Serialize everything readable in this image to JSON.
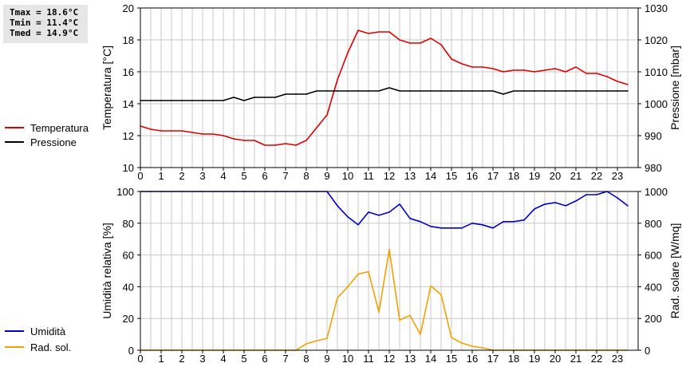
{
  "stats": {
    "tmax": "Tmax = 18.6°C",
    "tmin": "Tmin = 11.4°C",
    "tmed": "Tmed = 14.9°C"
  },
  "colors": {
    "temperature": "#dd0000",
    "pressure": "#000000",
    "humidity": "#0000cc",
    "solar": "#f5a000",
    "grid": "#c8c8c8"
  },
  "chart_data": [
    {
      "type": "line",
      "x_ticks": [
        0,
        1,
        2,
        3,
        4,
        5,
        6,
        7,
        8,
        9,
        10,
        11,
        12,
        13,
        14,
        15,
        16,
        17,
        18,
        19,
        20,
        21,
        22,
        23
      ],
      "xlim": [
        0,
        24
      ],
      "y_left": {
        "label": "Temperatura [°C]",
        "lim": [
          10,
          20
        ],
        "ticks": [
          10,
          12,
          14,
          16,
          18,
          20
        ]
      },
      "y_right": {
        "label": "Pressione [mbar]",
        "lim": [
          980,
          1030
        ],
        "ticks": [
          980,
          990,
          1000,
          1010,
          1020,
          1030
        ]
      },
      "grid": true,
      "legend_position": "left",
      "series": [
        {
          "name": "Temperatura",
          "axis": "left",
          "color": "#dd0000",
          "points": [
            [
              0,
              12.6
            ],
            [
              0.5,
              12.4
            ],
            [
              1,
              12.3
            ],
            [
              1.5,
              12.3
            ],
            [
              2,
              12.3
            ],
            [
              2.5,
              12.2
            ],
            [
              3,
              12.1
            ],
            [
              3.5,
              12.1
            ],
            [
              4,
              12.0
            ],
            [
              4.5,
              11.8
            ],
            [
              5,
              11.7
            ],
            [
              5.5,
              11.7
            ],
            [
              6,
              11.4
            ],
            [
              6.5,
              11.4
            ],
            [
              7,
              11.5
            ],
            [
              7.5,
              11.4
            ],
            [
              8,
              11.7
            ],
            [
              8.5,
              12.5
            ],
            [
              9,
              13.3
            ],
            [
              9.5,
              15.5
            ],
            [
              10,
              17.2
            ],
            [
              10.5,
              18.6
            ],
            [
              11,
              18.4
            ],
            [
              11.5,
              18.5
            ],
            [
              12,
              18.5
            ],
            [
              12.5,
              18.0
            ],
            [
              13,
              17.8
            ],
            [
              13.5,
              17.8
            ],
            [
              14,
              18.1
            ],
            [
              14.5,
              17.7
            ],
            [
              15,
              16.8
            ],
            [
              15.5,
              16.5
            ],
            [
              16,
              16.3
            ],
            [
              16.5,
              16.3
            ],
            [
              17,
              16.2
            ],
            [
              17.5,
              16.0
            ],
            [
              18,
              16.1
            ],
            [
              18.5,
              16.1
            ],
            [
              19,
              16.0
            ],
            [
              19.5,
              16.1
            ],
            [
              20,
              16.2
            ],
            [
              20.5,
              16.0
            ],
            [
              21,
              16.3
            ],
            [
              21.5,
              15.9
            ],
            [
              22,
              15.9
            ],
            [
              22.5,
              15.7
            ],
            [
              23,
              15.4
            ],
            [
              23.5,
              15.2
            ]
          ]
        },
        {
          "name": "Pressione",
          "axis": "right",
          "color": "#000000",
          "points": [
            [
              0,
              1001
            ],
            [
              0.5,
              1001
            ],
            [
              1,
              1001
            ],
            [
              1.5,
              1001
            ],
            [
              2,
              1001
            ],
            [
              2.5,
              1001
            ],
            [
              3,
              1001
            ],
            [
              3.5,
              1001
            ],
            [
              4,
              1001
            ],
            [
              4.5,
              1002
            ],
            [
              5,
              1001
            ],
            [
              5.5,
              1002
            ],
            [
              6,
              1002
            ],
            [
              6.5,
              1002
            ],
            [
              7,
              1003
            ],
            [
              7.5,
              1003
            ],
            [
              8,
              1003
            ],
            [
              8.5,
              1004
            ],
            [
              9,
              1004
            ],
            [
              9.5,
              1004
            ],
            [
              10,
              1004
            ],
            [
              10.5,
              1004
            ],
            [
              11,
              1004
            ],
            [
              11.5,
              1004
            ],
            [
              12,
              1005
            ],
            [
              12.5,
              1004
            ],
            [
              13,
              1004
            ],
            [
              13.5,
              1004
            ],
            [
              14,
              1004
            ],
            [
              14.5,
              1004
            ],
            [
              15,
              1004
            ],
            [
              15.5,
              1004
            ],
            [
              16,
              1004
            ],
            [
              16.5,
              1004
            ],
            [
              17,
              1004
            ],
            [
              17.5,
              1003
            ],
            [
              18,
              1004
            ],
            [
              18.5,
              1004
            ],
            [
              19,
              1004
            ],
            [
              19.5,
              1004
            ],
            [
              20,
              1004
            ],
            [
              20.5,
              1004
            ],
            [
              21,
              1004
            ],
            [
              21.5,
              1004
            ],
            [
              22,
              1004
            ],
            [
              22.5,
              1004
            ],
            [
              23,
              1004
            ],
            [
              23.5,
              1004
            ]
          ]
        }
      ]
    },
    {
      "type": "line",
      "x_ticks": [
        0,
        1,
        2,
        3,
        4,
        5,
        6,
        7,
        8,
        9,
        10,
        11,
        12,
        13,
        14,
        15,
        16,
        17,
        18,
        19,
        20,
        21,
        22,
        23
      ],
      "xlim": [
        0,
        24
      ],
      "y_left": {
        "label": "Umidità relativa [%]",
        "lim": [
          0,
          100
        ],
        "ticks": [
          0,
          20,
          40,
          60,
          80,
          100
        ]
      },
      "y_right": {
        "label": "Rad. solare [W/mq]",
        "lim": [
          0,
          1000
        ],
        "ticks": [
          0,
          200,
          400,
          600,
          800,
          1000
        ]
      },
      "grid": true,
      "legend_position": "left",
      "series": [
        {
          "name": "Umidità",
          "axis": "left",
          "color": "#0000cc",
          "points": [
            [
              0,
              100
            ],
            [
              0.5,
              100
            ],
            [
              1,
              100
            ],
            [
              1.5,
              100
            ],
            [
              2,
              100
            ],
            [
              2.5,
              100
            ],
            [
              3,
              100
            ],
            [
              3.5,
              100
            ],
            [
              4,
              100
            ],
            [
              4.5,
              100
            ],
            [
              5,
              100
            ],
            [
              5.5,
              100
            ],
            [
              6,
              100
            ],
            [
              6.5,
              100
            ],
            [
              7,
              100
            ],
            [
              7.5,
              100
            ],
            [
              8,
              100
            ],
            [
              8.5,
              100
            ],
            [
              9,
              100
            ],
            [
              9.5,
              91
            ],
            [
              10,
              84
            ],
            [
              10.5,
              79
            ],
            [
              11,
              87
            ],
            [
              11.5,
              85
            ],
            [
              12,
              87
            ],
            [
              12.5,
              92
            ],
            [
              13,
              83
            ],
            [
              13.5,
              81
            ],
            [
              14,
              78
            ],
            [
              14.5,
              77
            ],
            [
              15,
              77
            ],
            [
              15.5,
              77
            ],
            [
              16,
              80
            ],
            [
              16.5,
              79
            ],
            [
              17,
              77
            ],
            [
              17.5,
              81
            ],
            [
              18,
              81
            ],
            [
              18.5,
              82
            ],
            [
              19,
              89
            ],
            [
              19.5,
              92
            ],
            [
              20,
              93
            ],
            [
              20.5,
              91
            ],
            [
              21,
              94
            ],
            [
              21.5,
              98
            ],
            [
              22,
              98
            ],
            [
              22.5,
              100
            ],
            [
              23,
              96
            ],
            [
              23.5,
              91
            ]
          ]
        },
        {
          "name": "Rad. sol.",
          "axis": "right",
          "color": "#f5a000",
          "points": [
            [
              0,
              0
            ],
            [
              0.5,
              0
            ],
            [
              1,
              0
            ],
            [
              1.5,
              0
            ],
            [
              2,
              0
            ],
            [
              2.5,
              0
            ],
            [
              3,
              0
            ],
            [
              3.5,
              0
            ],
            [
              4,
              0
            ],
            [
              4.5,
              0
            ],
            [
              5,
              0
            ],
            [
              5.5,
              0
            ],
            [
              6,
              0
            ],
            [
              6.5,
              0
            ],
            [
              7,
              0
            ],
            [
              7.5,
              0
            ],
            [
              8,
              40
            ],
            [
              8.5,
              60
            ],
            [
              9,
              75
            ],
            [
              9.5,
              330
            ],
            [
              10,
              400
            ],
            [
              10.5,
              480
            ],
            [
              11,
              495
            ],
            [
              11.5,
              240
            ],
            [
              12,
              635
            ],
            [
              12.5,
              190
            ],
            [
              13,
              220
            ],
            [
              13.5,
              100
            ],
            [
              14,
              405
            ],
            [
              14.5,
              350
            ],
            [
              15,
              80
            ],
            [
              15.5,
              45
            ],
            [
              16,
              25
            ],
            [
              16.5,
              15
            ],
            [
              17,
              0
            ],
            [
              17.5,
              0
            ],
            [
              18,
              0
            ],
            [
              18.5,
              0
            ],
            [
              19,
              0
            ],
            [
              19.5,
              0
            ],
            [
              20,
              0
            ],
            [
              20.5,
              0
            ],
            [
              21,
              0
            ],
            [
              21.5,
              0
            ],
            [
              22,
              0
            ],
            [
              22.5,
              0
            ],
            [
              23,
              0
            ],
            [
              23.5,
              0
            ]
          ]
        }
      ]
    }
  ]
}
